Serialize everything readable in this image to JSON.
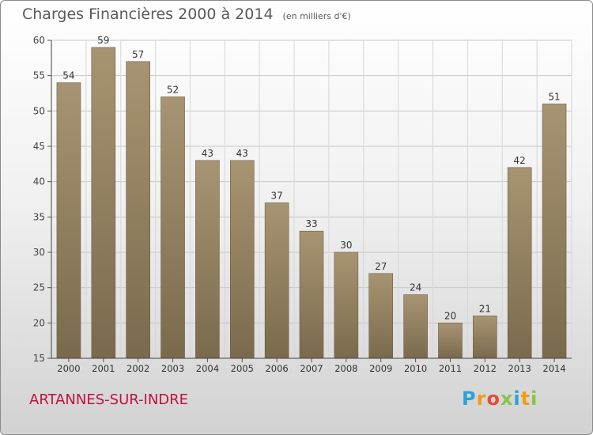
{
  "header": {
    "title": "Charges Financières 2000 à 2014",
    "unit": "(en milliers d'€)"
  },
  "footer": {
    "commune": "ARTANNES-SUR-INDRE",
    "logo_letters": [
      "P",
      "r",
      "o",
      "x",
      "i",
      "t",
      "i"
    ],
    "logo_colors": [
      "#29a3d9",
      "#f39c12",
      "#e74c3c",
      "#8bc34a",
      "#29a3d9",
      "#f39c12",
      "#8bc34a"
    ]
  },
  "colors": {
    "commune": "#c0123c",
    "bar_top": "#a79472",
    "bar_bottom": "#7a6a4d"
  },
  "chart_data": {
    "type": "bar",
    "title": "Charges Financières 2000 à 2014",
    "subtitle": "(en milliers d'€)",
    "categories": [
      "2000",
      "2001",
      "2002",
      "2003",
      "2004",
      "2005",
      "2006",
      "2007",
      "2008",
      "2009",
      "2010",
      "2011",
      "2012",
      "2013",
      "2014"
    ],
    "values": [
      54,
      59,
      57,
      52,
      43,
      43,
      37,
      33,
      30,
      27,
      24,
      20,
      21,
      42,
      51
    ],
    "ylim": [
      15,
      60
    ],
    "yticks": [
      15,
      20,
      25,
      30,
      35,
      40,
      45,
      50,
      55,
      60
    ],
    "grid": true
  }
}
